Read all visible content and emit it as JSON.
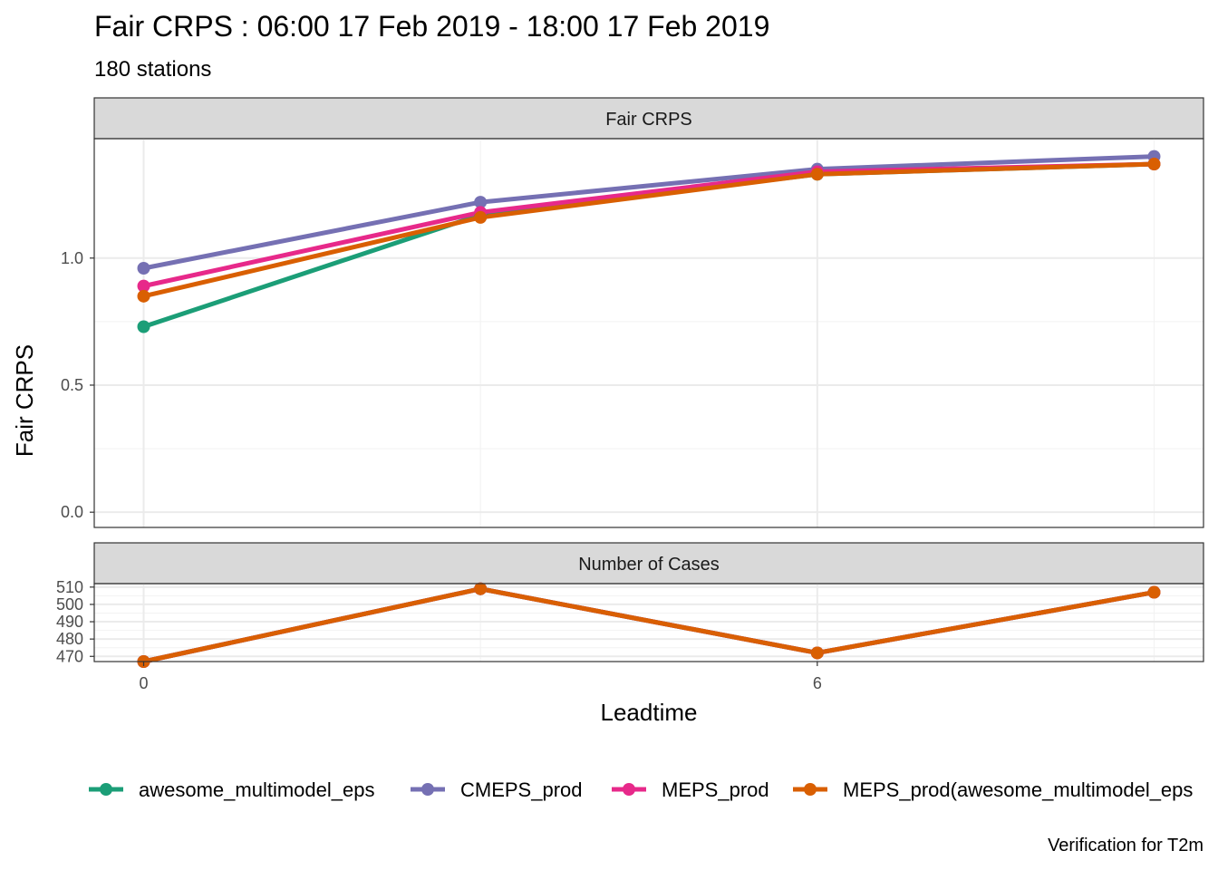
{
  "title": "Fair CRPS : 06:00 17 Feb 2019 - 18:00 17 Feb 2019",
  "subtitle": "180 stations",
  "caption": "Verification for T2m",
  "chart_data": {
    "type": "line",
    "xlabel": "Leadtime",
    "x": [
      0,
      3,
      6,
      9
    ],
    "x_ticks": [
      0,
      6
    ],
    "xlim": [
      -0.44,
      9.44
    ],
    "legend": {
      "placement": "bottom",
      "entries": [
        "awesome_multimodel_eps",
        "CMEPS_prod",
        "MEPS_prod",
        "MEPS_prod(awesome_multimodel_eps"
      ]
    },
    "grid": true,
    "panels": [
      {
        "strip": "Fair CRPS",
        "ylabel": "Fair CRPS",
        "ylim": [
          -0.06,
          1.47
        ],
        "y_ticks": [
          0.0,
          0.5,
          1.0
        ],
        "series": [
          {
            "name": "awesome_multimodel_eps",
            "color": "#1b9e77",
            "values": [
              0.73,
              1.17,
              1.33,
              1.37
            ]
          },
          {
            "name": "CMEPS_prod",
            "color": "#7570b3",
            "values": [
              0.96,
              1.22,
              1.35,
              1.4
            ]
          },
          {
            "name": "MEPS_prod",
            "color": "#e7298a",
            "values": [
              0.89,
              1.18,
              1.34,
              1.37
            ]
          },
          {
            "name": "MEPS_prod(awesome_multimodel_eps",
            "color": "#d95f02",
            "values": [
              0.85,
              1.16,
              1.33,
              1.37
            ]
          }
        ]
      },
      {
        "strip": "Number of Cases",
        "ylim": [
          467,
          512
        ],
        "y_ticks": [
          470,
          480,
          490,
          500,
          510
        ],
        "series": [
          {
            "name": "awesome_multimodel_eps",
            "color": "#1b9e77",
            "values": [
              467,
              509,
              472,
              507
            ]
          },
          {
            "name": "CMEPS_prod",
            "color": "#7570b3",
            "values": [
              467,
              509,
              472,
              507
            ]
          },
          {
            "name": "MEPS_prod",
            "color": "#e7298a",
            "values": [
              467,
              509,
              472,
              507
            ]
          },
          {
            "name": "MEPS_prod(awesome_multimodel_eps",
            "color": "#d95f02",
            "values": [
              467,
              509,
              472,
              507
            ]
          }
        ]
      }
    ]
  }
}
